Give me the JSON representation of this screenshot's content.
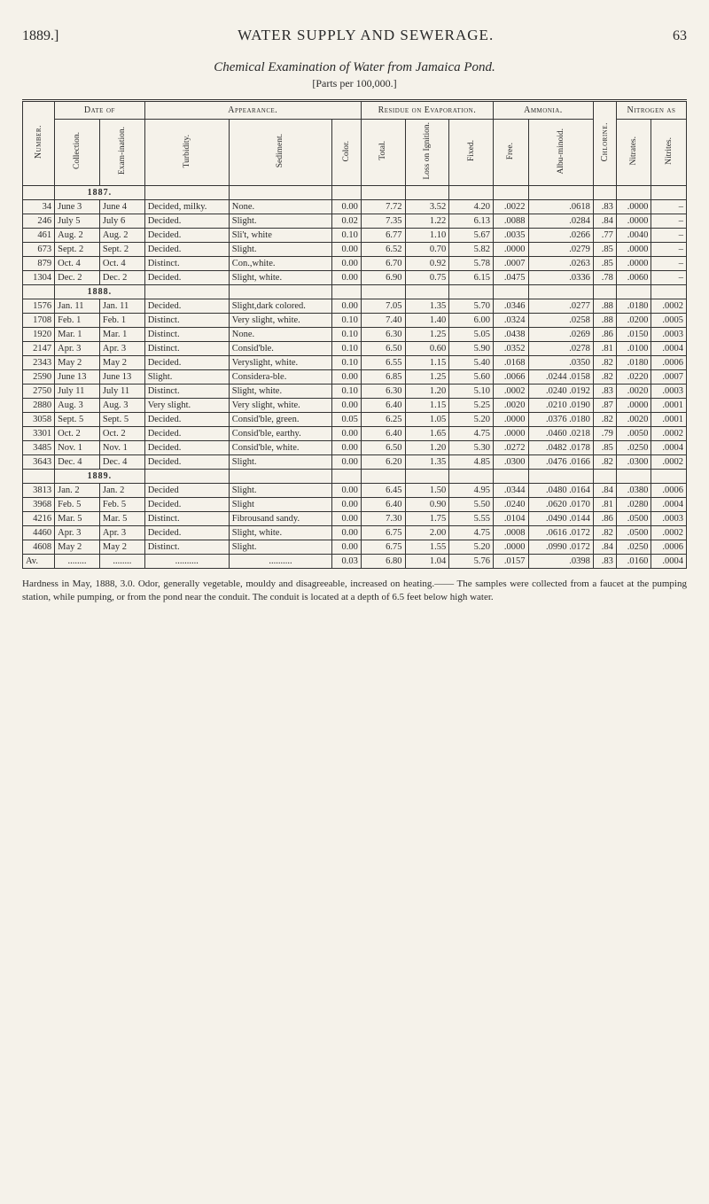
{
  "header": {
    "year": "1889.]",
    "title": "WATER SUPPLY AND SEWERAGE.",
    "pagenum": "63"
  },
  "subtitle": "Chemical Examination of Water from Jamaica Pond.",
  "parts": "[Parts per 100,000.]",
  "groups": {
    "date": "Date of",
    "appearance": "Appearance.",
    "residue": "Residue on Evaporation.",
    "ammonia": "Ammonia.",
    "nitrogen": "Nitrogen as"
  },
  "cols": {
    "number": "Number.",
    "collection": "Collection.",
    "exam": "Exam-ination.",
    "turbidity": "Turbidity.",
    "sediment": "Sediment.",
    "color": "Color.",
    "total": "Total.",
    "loss": "Loss on Ignition.",
    "fixed": "Fixed.",
    "free": "Free.",
    "albu": "Albu-minoid.",
    "chlorine": "Chlorine.",
    "nitrates": "Nitrates.",
    "nitrites": "Nitrites."
  },
  "years": {
    "y1887": "1887.",
    "y1888": "1888.",
    "y1889": "1889."
  },
  "rows": [
    {
      "num": "34",
      "coll": "June 3",
      "exam": "June 4",
      "turb": "Decided, milky.",
      "sed": "None.",
      "color": "0.00",
      "total": "7.72",
      "loss": "3.52",
      "fixed": "4.20",
      "free": ".0022",
      "albu": ".0618",
      "chl": ".83",
      "nitra": ".0000",
      "nitri": "–"
    },
    {
      "num": "246",
      "coll": "July 5",
      "exam": "July 6",
      "turb": "Decided.",
      "sed": "Slight.",
      "color": "0.02",
      "total": "7.35",
      "loss": "1.22",
      "fixed": "6.13",
      "free": ".0088",
      "albu": ".0284",
      "chl": ".84",
      "nitra": ".0000",
      "nitri": "–"
    },
    {
      "num": "461",
      "coll": "Aug. 2",
      "exam": "Aug. 2",
      "turb": "Decided.",
      "sed": "Sli't, white",
      "color": "0.10",
      "total": "6.77",
      "loss": "1.10",
      "fixed": "5.67",
      "free": ".0035",
      "albu": ".0266",
      "chl": ".77",
      "nitra": ".0040",
      "nitri": "–"
    },
    {
      "num": "673",
      "coll": "Sept. 2",
      "exam": "Sept. 2",
      "turb": "Decided.",
      "sed": "Slight.",
      "color": "0.00",
      "total": "6.52",
      "loss": "0.70",
      "fixed": "5.82",
      "free": ".0000",
      "albu": ".0279",
      "chl": ".85",
      "nitra": ".0000",
      "nitri": "–"
    },
    {
      "num": "879",
      "coll": "Oct. 4",
      "exam": "Oct. 4",
      "turb": "Distinct.",
      "sed": "Con.,white.",
      "color": "0.00",
      "total": "6.70",
      "loss": "0.92",
      "fixed": "5.78",
      "free": ".0007",
      "albu": ".0263",
      "chl": ".85",
      "nitra": ".0000",
      "nitri": "–"
    },
    {
      "num": "1304",
      "coll": "Dec. 2",
      "exam": "Dec. 2",
      "turb": "Decided.",
      "sed": "Slight, white.",
      "color": "0.00",
      "total": "6.90",
      "loss": "0.75",
      "fixed": "6.15",
      "free": ".0475",
      "albu": ".0336",
      "chl": ".78",
      "nitra": ".0060",
      "nitri": "–"
    },
    {
      "num": "1576",
      "coll": "Jan. 11",
      "exam": "Jan. 11",
      "turb": "Decided.",
      "sed": "Slight,dark colored.",
      "color": "0.00",
      "total": "7.05",
      "loss": "1.35",
      "fixed": "5.70",
      "free": ".0346",
      "albu": ".0277",
      "chl": ".88",
      "nitra": ".0180",
      "nitri": ".0002"
    },
    {
      "num": "1708",
      "coll": "Feb. 1",
      "exam": "Feb. 1",
      "turb": "Distinct.",
      "sed": "Very slight, white.",
      "color": "0.10",
      "total": "7.40",
      "loss": "1.40",
      "fixed": "6.00",
      "free": ".0324",
      "albu": ".0258",
      "chl": ".88",
      "nitra": ".0200",
      "nitri": ".0005"
    },
    {
      "num": "1920",
      "coll": "Mar. 1",
      "exam": "Mar. 1",
      "turb": "Distinct.",
      "sed": "None.",
      "color": "0.10",
      "total": "6.30",
      "loss": "1.25",
      "fixed": "5.05",
      "free": ".0438",
      "albu": ".0269",
      "chl": ".86",
      "nitra": ".0150",
      "nitri": ".0003"
    },
    {
      "num": "2147",
      "coll": "Apr. 3",
      "exam": "Apr. 3",
      "turb": "Distinct.",
      "sed": "Consid'ble.",
      "color": "0.10",
      "total": "6.50",
      "loss": "0.60",
      "fixed": "5.90",
      "free": ".0352",
      "albu": ".0278",
      "chl": ".81",
      "nitra": ".0100",
      "nitri": ".0004"
    },
    {
      "num": "2343",
      "coll": "May 2",
      "exam": "May 2",
      "turb": "Decided.",
      "sed": "Veryslight, white.",
      "color": "0.10",
      "total": "6.55",
      "loss": "1.15",
      "fixed": "5.40",
      "free": ".0168",
      "albu": ".0350",
      "chl": ".82",
      "nitra": ".0180",
      "nitri": ".0006"
    },
    {
      "num": "2590",
      "coll": "June 13",
      "exam": "June 13",
      "turb": "Slight.",
      "sed": "Considera-ble.",
      "color": "0.00",
      "total": "6.85",
      "loss": "1.25",
      "fixed": "5.60",
      "free": ".0066",
      "albu": ".0244 .0158",
      "chl": ".82",
      "nitra": ".0220",
      "nitri": ".0007"
    },
    {
      "num": "2750",
      "coll": "July 11",
      "exam": "July 11",
      "turb": "Distinct.",
      "sed": "Slight, white.",
      "color": "0.10",
      "total": "6.30",
      "loss": "1.20",
      "fixed": "5.10",
      "free": ".0002",
      "albu": ".0240 .0192",
      "chl": ".83",
      "nitra": ".0020",
      "nitri": ".0003"
    },
    {
      "num": "2880",
      "coll": "Aug. 3",
      "exam": "Aug. 3",
      "turb": "Very slight.",
      "sed": "Very slight, white.",
      "color": "0.00",
      "total": "6.40",
      "loss": "1.15",
      "fixed": "5.25",
      "free": ".0020",
      "albu": ".0210 .0190",
      "chl": ".87",
      "nitra": ".0000",
      "nitri": ".0001"
    },
    {
      "num": "3058",
      "coll": "Sept. 5",
      "exam": "Sept. 5",
      "turb": "Decided.",
      "sed": "Consid'ble, green.",
      "color": "0.05",
      "total": "6.25",
      "loss": "1.05",
      "fixed": "5.20",
      "free": ".0000",
      "albu": ".0376 .0180",
      "chl": ".82",
      "nitra": ".0020",
      "nitri": ".0001"
    },
    {
      "num": "3301",
      "coll": "Oct. 2",
      "exam": "Oct. 2",
      "turb": "Decided.",
      "sed": "Consid'ble, earthy.",
      "color": "0.00",
      "total": "6.40",
      "loss": "1.65",
      "fixed": "4.75",
      "free": ".0000",
      "albu": ".0460 .0218",
      "chl": ".79",
      "nitra": ".0050",
      "nitri": ".0002"
    },
    {
      "num": "3485",
      "coll": "Nov. 1",
      "exam": "Nov. 1",
      "turb": "Decided.",
      "sed": "Consid'ble, white.",
      "color": "0.00",
      "total": "6.50",
      "loss": "1.20",
      "fixed": "5.30",
      "free": ".0272",
      "albu": ".0482 .0178",
      "chl": ".85",
      "nitra": ".0250",
      "nitri": ".0004"
    },
    {
      "num": "3643",
      "coll": "Dec. 4",
      "exam": "Dec. 4",
      "turb": "Decided.",
      "sed": "Slight.",
      "color": "0.00",
      "total": "6.20",
      "loss": "1.35",
      "fixed": "4.85",
      "free": ".0300",
      "albu": ".0476 .0166",
      "chl": ".82",
      "nitra": ".0300",
      "nitri": ".0002"
    },
    {
      "num": "3813",
      "coll": "Jan. 2",
      "exam": "Jan. 2",
      "turb": "Decided",
      "sed": "Slight.",
      "color": "0.00",
      "total": "6.45",
      "loss": "1.50",
      "fixed": "4.95",
      "free": ".0344",
      "albu": ".0480 .0164",
      "chl": ".84",
      "nitra": ".0380",
      "nitri": ".0006"
    },
    {
      "num": "3968",
      "coll": "Feb. 5",
      "exam": "Feb. 5",
      "turb": "Decided.",
      "sed": "Slight",
      "color": "0.00",
      "total": "6.40",
      "loss": "0.90",
      "fixed": "5.50",
      "free": ".0240",
      "albu": ".0620 .0170",
      "chl": ".81",
      "nitra": ".0280",
      "nitri": ".0004"
    },
    {
      "num": "4216",
      "coll": "Mar. 5",
      "exam": "Mar. 5",
      "turb": "Distinct.",
      "sed": "Fibrousand sandy.",
      "color": "0.00",
      "total": "7.30",
      "loss": "1.75",
      "fixed": "5.55",
      "free": ".0104",
      "albu": ".0490 .0144",
      "chl": ".86",
      "nitra": ".0500",
      "nitri": ".0003"
    },
    {
      "num": "4460",
      "coll": "Apr. 3",
      "exam": "Apr. 3",
      "turb": "Decided.",
      "sed": "Slight, white.",
      "color": "0.00",
      "total": "6.75",
      "loss": "2.00",
      "fixed": "4.75",
      "free": ".0008",
      "albu": ".0616 .0172",
      "chl": ".82",
      "nitra": ".0500",
      "nitri": ".0002"
    },
    {
      "num": "4608",
      "coll": "May 2",
      "exam": "May 2",
      "turb": "Distinct.",
      "sed": "Slight.",
      "color": "0.00",
      "total": "6.75",
      "loss": "1.55",
      "fixed": "5.20",
      "free": ".0000",
      "albu": ".0990 .0172",
      "chl": ".84",
      "nitra": ".0250",
      "nitri": ".0006"
    }
  ],
  "avg": {
    "label": "Av.",
    "color": "0.03",
    "total": "6.80",
    "loss": "1.04",
    "fixed": "5.76",
    "free": ".0157",
    "albu": ".0398",
    "chl": ".83",
    "nitra": ".0160",
    "nitri": ".0004"
  },
  "footnote": "Hardness in May, 1888, 3.0. Odor, generally vegetable, mouldy and disagreeable, increased on heating.—— The samples were collected from a faucet at the pumping station, while pumping, or from the pond near the conduit. The conduit is located at a depth of 6.5 feet below high water."
}
